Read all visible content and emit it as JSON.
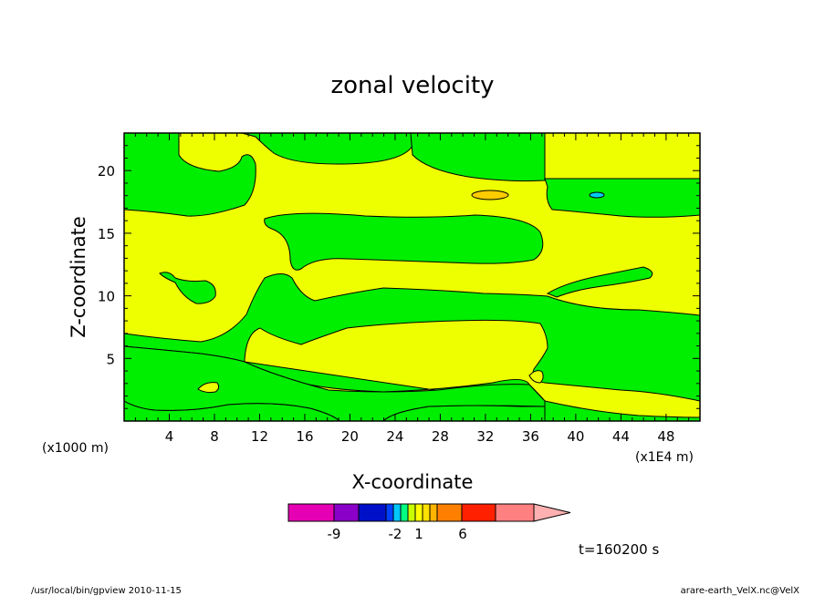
{
  "chart_data": {
    "type": "contour",
    "title": "zonal velocity",
    "xlabel": "X-coordinate",
    "ylabel": "Z-coordinate",
    "x_unit_left": "(x1000 m)",
    "x_unit_right": "(x1E4 m)",
    "xlim": [
      0,
      51
    ],
    "ylim": [
      0,
      23
    ],
    "x_ticks": [
      4,
      8,
      12,
      16,
      20,
      24,
      28,
      32,
      36,
      40,
      44,
      48
    ],
    "y_ticks": [
      5,
      10,
      15,
      20
    ],
    "fill_colors": {
      "green": "#00ee00",
      "yellow": "#eeff00",
      "orange_cell": "#ffcc00",
      "cyan_cell": "#00ccee"
    },
    "colorbar": {
      "tick_labels": [
        "-9",
        "-2",
        "1",
        "6"
      ],
      "segments": [
        "#e600b4",
        "#8a00c8",
        "#0010c8",
        "#0040ff",
        "#00c8ff",
        "#00ff80",
        "#c8ff00",
        "#ffff00",
        "#ffe000",
        "#ffb400",
        "#ff8000",
        "#ff2000",
        "#ff8080",
        "#ffb0b0"
      ]
    },
    "time_label": "t=160200 s",
    "footer_left": "/usr/local/bin/gpview  2010-11-15",
    "footer_right": "arare-earth_VelX.nc@VelX"
  }
}
